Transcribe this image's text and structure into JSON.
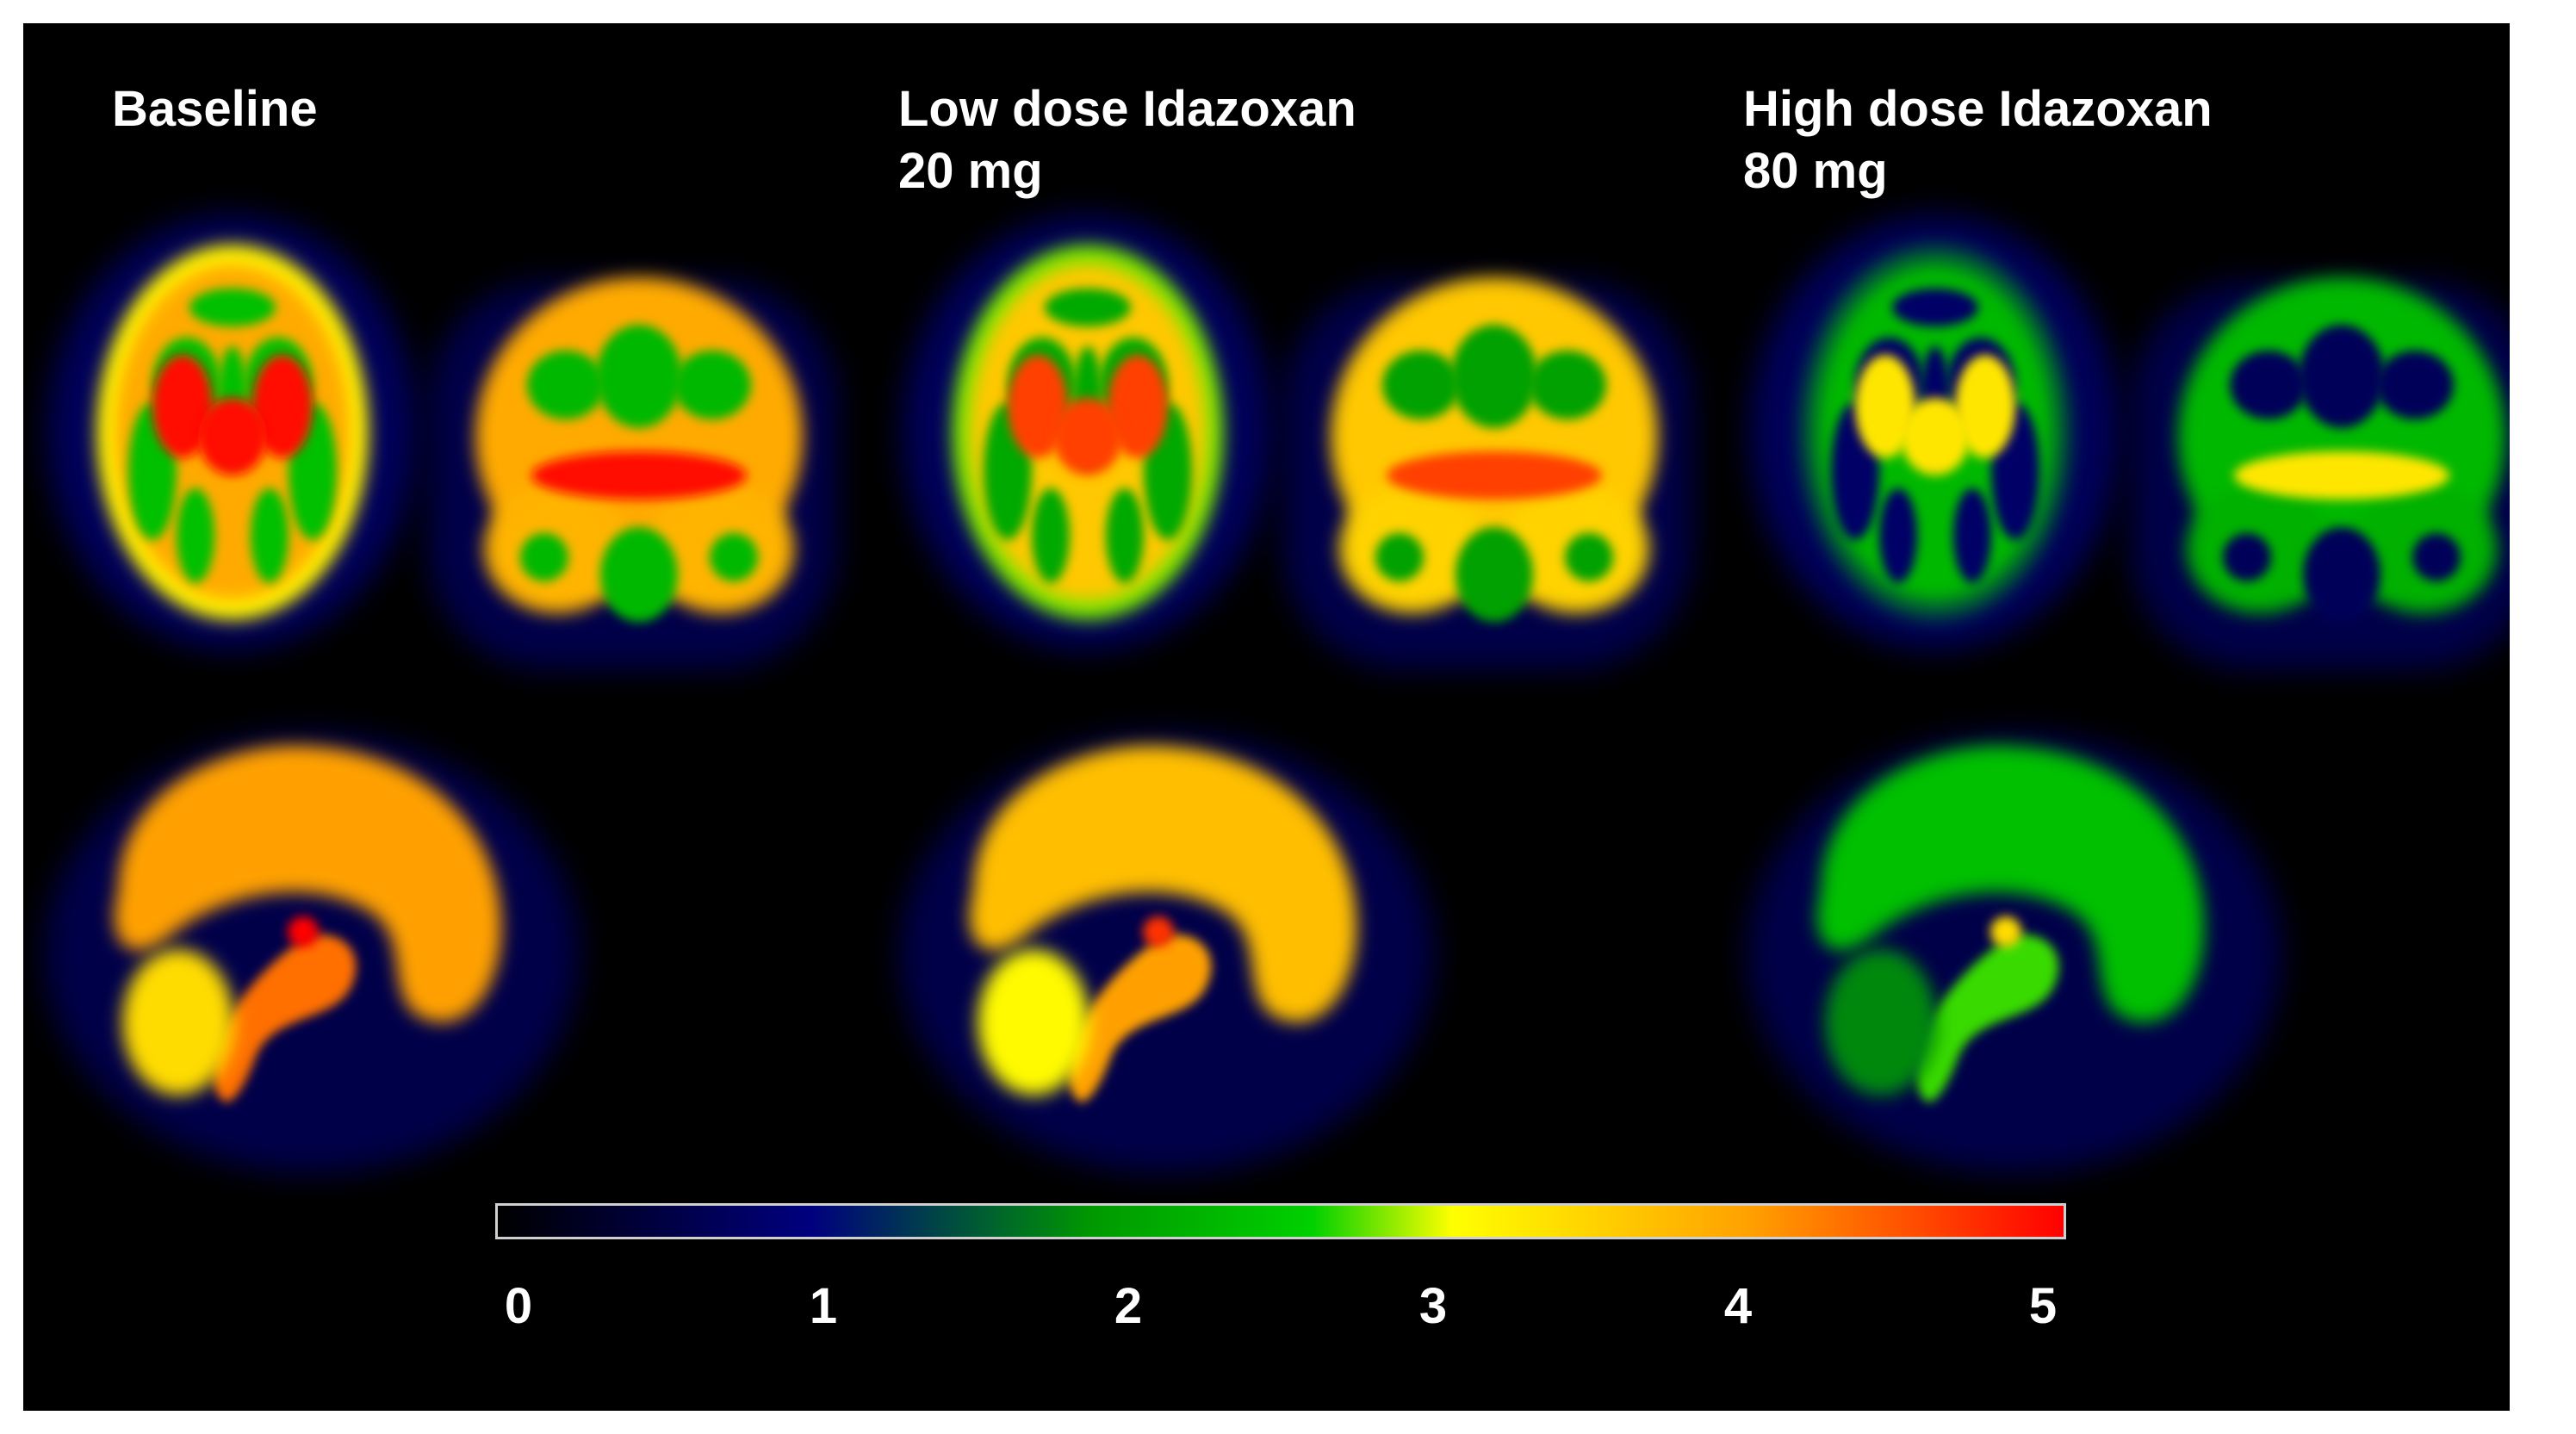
{
  "panels": [
    {
      "id": "baseline",
      "title_lines": [
        "Baseline"
      ],
      "level": 4
    },
    {
      "id": "low",
      "title_lines": [
        "Low dose Idazoxan",
        "20 mg"
      ],
      "level": 3.7
    },
    {
      "id": "high",
      "title_lines": [
        "High dose Idazoxan",
        "80 mg"
      ],
      "level": 2.4
    }
  ],
  "colorbar": {
    "min": 0,
    "max": 5,
    "ticks": [
      "0",
      "1",
      "2",
      "3",
      "4",
      "5"
    ],
    "colors": [
      "#000000",
      "#00007f",
      "#009900",
      "#00d000",
      "#ffff00",
      "#ffa000",
      "#ff0000"
    ]
  }
}
